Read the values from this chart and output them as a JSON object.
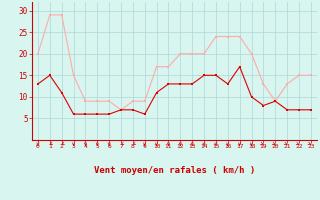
{
  "x": [
    0,
    1,
    2,
    3,
    4,
    5,
    6,
    7,
    8,
    9,
    10,
    11,
    12,
    13,
    14,
    15,
    16,
    17,
    18,
    19,
    20,
    21,
    22,
    23
  ],
  "vent_moyen": [
    13,
    15,
    11,
    6,
    6,
    6,
    6,
    7,
    7,
    6,
    11,
    13,
    13,
    13,
    15,
    15,
    13,
    17,
    10,
    8,
    9,
    7,
    7,
    7
  ],
  "rafales": [
    20,
    29,
    29,
    15,
    9,
    9,
    9,
    7,
    9,
    9,
    17,
    17,
    20,
    20,
    20,
    24,
    24,
    24,
    20,
    13,
    9,
    13,
    15,
    15
  ],
  "color_moyen": "#dd0000",
  "color_rafales": "#ffaaaa",
  "bg_color": "#d8f5f0",
  "grid_color": "#aad8d8",
  "xlabel": "Vent moyen/en rafales ( km/h )",
  "xlabel_color": "#cc0000",
  "tick_color": "#cc0000",
  "ylim": [
    0,
    32
  ],
  "yticks": [
    5,
    10,
    15,
    20,
    25,
    30
  ],
  "spine_color": "#cc0000",
  "arrow_angles": [
    0,
    -45,
    -45,
    0,
    0,
    0,
    0,
    -45,
    -45,
    0,
    0,
    0,
    0,
    0,
    0,
    0,
    0,
    0,
    0,
    45,
    45,
    45,
    45,
    45
  ]
}
